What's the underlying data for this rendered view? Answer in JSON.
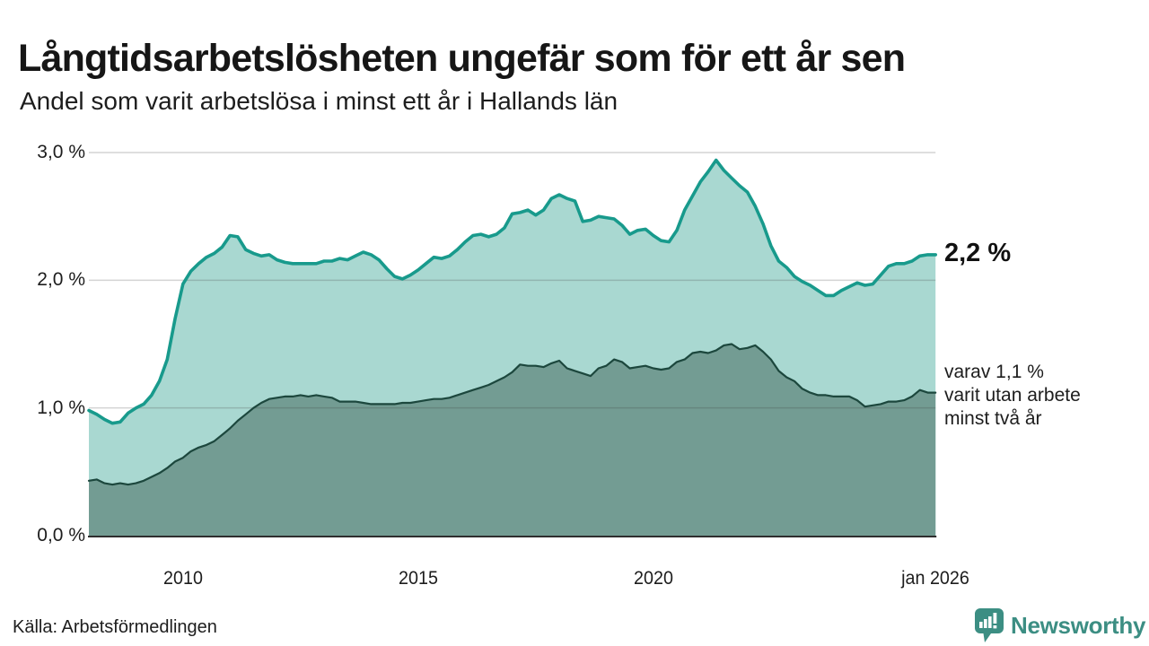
{
  "header": {
    "title": "Långtidsarbetslösheten ungefär som för ett år sen",
    "subtitle": "Andel som varit arbetslösa i minst ett år i Hallands län"
  },
  "annotations": {
    "total_label": "2,2 %",
    "subset_label": "varav 1,1 %\nvarit utan arbete\nminst två år"
  },
  "footer": {
    "source": "Källa: Arbetsförmedlingen",
    "brand": "Newsworthy"
  },
  "colors": {
    "total_line": "#189a8c",
    "total_fill": "#a9d8d1",
    "subset_line": "#1c473d",
    "subset_fill": "#739c93",
    "grid": "#3c3c3c",
    "baseline": "#2e2e2e",
    "brand_teal": "#3c8e83",
    "text": "#1d1d1d"
  },
  "chart_data": {
    "type": "area",
    "title": "Långtidsarbetslösheten ungefär som för ett år sen",
    "subtitle": "Andel som varit arbetslösa i minst ett år i Hallands län",
    "xlabel": "",
    "ylabel": "",
    "x_domain": [
      2008.0,
      2026.0
    ],
    "ylim": [
      0,
      3.07
    ],
    "points_per_year": 6,
    "grid": "horizontal",
    "legend_position": "end-labels-right",
    "y_ticks": [
      {
        "label": "3,0 %",
        "value": 3.0
      },
      {
        "label": "2,0 %",
        "value": 2.0
      },
      {
        "label": "1,0 %",
        "value": 1.0
      },
      {
        "label": "0,0 %",
        "value": 0.0
      }
    ],
    "x_ticks": [
      {
        "label": "2010",
        "year": 2010
      },
      {
        "label": "2015",
        "year": 2015
      },
      {
        "label": "2020",
        "year": 2020
      },
      {
        "label": "jan 2026",
        "year": 2026
      }
    ],
    "series": [
      {
        "name": "Arbetslösa minst ett år",
        "latest_value": "2,2 %",
        "values": [
          0.98,
          0.95,
          0.91,
          0.88,
          0.89,
          0.96,
          1.0,
          1.03,
          1.1,
          1.21,
          1.38,
          1.7,
          1.97,
          2.07,
          2.13,
          2.18,
          2.21,
          2.26,
          2.35,
          2.34,
          2.24,
          2.21,
          2.19,
          2.2,
          2.16,
          2.14,
          2.13,
          2.13,
          2.13,
          2.13,
          2.15,
          2.15,
          2.17,
          2.16,
          2.19,
          2.22,
          2.2,
          2.16,
          2.09,
          2.03,
          2.01,
          2.04,
          2.08,
          2.13,
          2.18,
          2.17,
          2.19,
          2.24,
          2.3,
          2.35,
          2.36,
          2.34,
          2.36,
          2.41,
          2.52,
          2.53,
          2.55,
          2.51,
          2.55,
          2.64,
          2.67,
          2.64,
          2.62,
          2.46,
          2.47,
          2.5,
          2.49,
          2.48,
          2.43,
          2.36,
          2.39,
          2.4,
          2.35,
          2.31,
          2.3,
          2.39,
          2.55,
          2.66,
          2.77,
          2.85,
          2.94,
          2.86,
          2.8,
          2.74,
          2.69,
          2.58,
          2.44,
          2.27,
          2.15,
          2.1,
          2.03,
          1.99,
          1.96,
          1.92,
          1.88,
          1.88,
          1.92,
          1.95,
          1.98,
          1.96,
          1.97,
          2.04,
          2.11,
          2.13,
          2.13,
          2.15,
          2.19,
          2.2,
          2.2
        ]
      },
      {
        "name": "Varav utan arbete minst två år",
        "latest_value": "1,1 %",
        "values": [
          0.43,
          0.44,
          0.41,
          0.4,
          0.41,
          0.4,
          0.41,
          0.43,
          0.46,
          0.49,
          0.53,
          0.58,
          0.61,
          0.66,
          0.69,
          0.71,
          0.74,
          0.79,
          0.84,
          0.9,
          0.95,
          1.0,
          1.04,
          1.07,
          1.08,
          1.09,
          1.09,
          1.1,
          1.09,
          1.1,
          1.09,
          1.08,
          1.05,
          1.05,
          1.05,
          1.04,
          1.03,
          1.03,
          1.03,
          1.03,
          1.04,
          1.04,
          1.05,
          1.06,
          1.07,
          1.07,
          1.08,
          1.1,
          1.12,
          1.14,
          1.16,
          1.18,
          1.21,
          1.24,
          1.28,
          1.34,
          1.33,
          1.33,
          1.32,
          1.35,
          1.37,
          1.31,
          1.29,
          1.27,
          1.25,
          1.31,
          1.33,
          1.38,
          1.36,
          1.31,
          1.32,
          1.33,
          1.31,
          1.3,
          1.31,
          1.36,
          1.38,
          1.43,
          1.44,
          1.43,
          1.45,
          1.49,
          1.5,
          1.46,
          1.47,
          1.49,
          1.44,
          1.38,
          1.29,
          1.24,
          1.21,
          1.15,
          1.12,
          1.1,
          1.1,
          1.09,
          1.09,
          1.09,
          1.06,
          1.01,
          1.02,
          1.03,
          1.05,
          1.05,
          1.06,
          1.09,
          1.14,
          1.12,
          1.12
        ]
      }
    ]
  }
}
